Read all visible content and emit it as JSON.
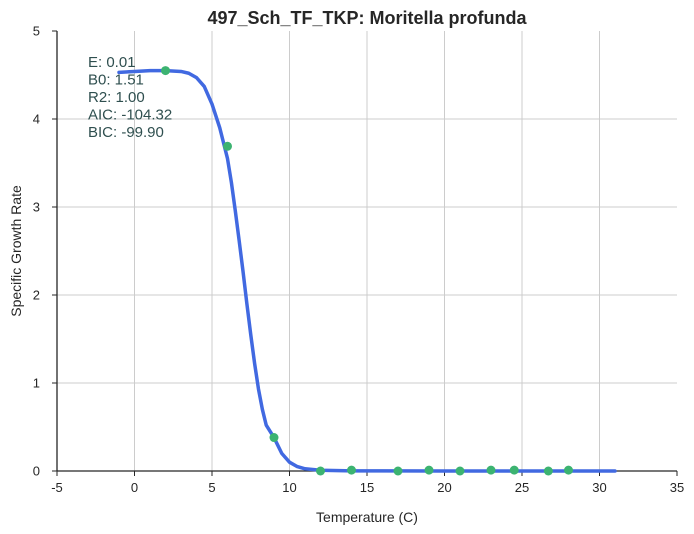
{
  "chart_data": {
    "type": "line",
    "title": "497_Sch_TF_TKP: Moritella profunda",
    "xlabel": "Temperature (C)",
    "ylabel": "Specific Growth Rate",
    "xlim": [
      -5,
      35
    ],
    "ylim": [
      0,
      5
    ],
    "xticks": [
      -5,
      0,
      5,
      10,
      15,
      20,
      25,
      30,
      35
    ],
    "yticks": [
      0,
      1,
      2,
      3,
      4,
      5
    ],
    "grid": true,
    "colors": {
      "fit": "#4169e1",
      "points": "#3cb371",
      "stats": "#2f4f4f"
    },
    "fit_curve": {
      "x": [
        -1,
        0,
        1,
        2,
        3,
        3.5,
        4,
        4.5,
        5,
        5.5,
        6,
        6.25,
        6.5,
        6.75,
        7,
        7.25,
        7.5,
        7.75,
        8,
        8.25,
        8.5,
        9,
        9.5,
        10,
        10.5,
        11,
        12,
        14,
        20,
        25,
        31
      ],
      "y": [
        4.53,
        4.54,
        4.55,
        4.55,
        4.54,
        4.52,
        4.47,
        4.37,
        4.17,
        3.9,
        3.55,
        3.28,
        2.96,
        2.62,
        2.27,
        1.9,
        1.55,
        1.22,
        0.93,
        0.7,
        0.52,
        0.38,
        0.2,
        0.1,
        0.05,
        0.025,
        0.008,
        0.002,
        0.0,
        0.0,
        0.0
      ]
    },
    "series": [
      {
        "x": [
          2,
          6,
          9,
          12,
          14,
          17,
          19,
          21,
          23,
          24.5,
          26.7,
          28
        ],
        "y": [
          4.55,
          3.69,
          0.38,
          0.0,
          0.01,
          0.0,
          0.01,
          0.0,
          0.01,
          0.01,
          0.0,
          0.01
        ]
      }
    ],
    "stats": [
      {
        "label": "E:",
        "value": "0.01"
      },
      {
        "label": "B0:",
        "value": "1.51"
      },
      {
        "label": "R2:",
        "value": "1.00"
      },
      {
        "label": "AIC:",
        "value": "-104.32"
      },
      {
        "label": "BIC:",
        "value": "-99.90"
      }
    ]
  }
}
